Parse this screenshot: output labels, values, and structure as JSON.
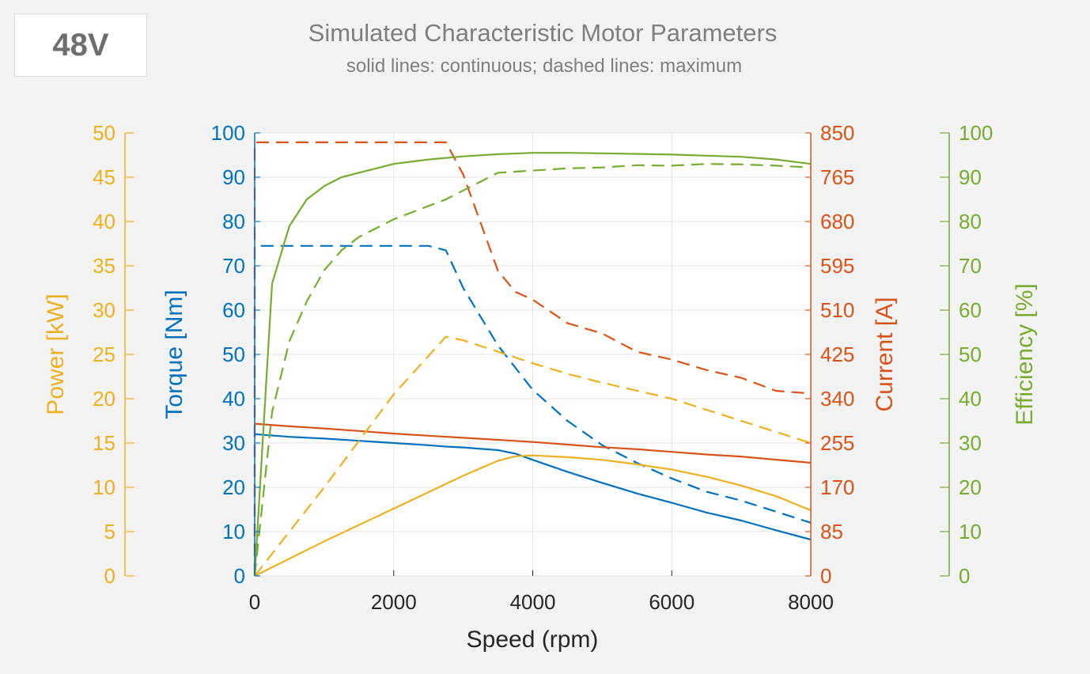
{
  "badge": "48V",
  "chart_data": {
    "type": "line",
    "title": "Simulated Characteristic Motor Parameters",
    "subtitle": "solid lines: continuous; dashed lines: maximum",
    "xlabel": "Speed (rpm)",
    "xlim": [
      0,
      8000
    ],
    "xticks": [
      0,
      2000,
      4000,
      6000,
      8000
    ],
    "grid": true,
    "axes": [
      {
        "id": "power",
        "label": "Power [kW]",
        "side": "left-outer",
        "color": "#EDB120",
        "lim": [
          0,
          50
        ],
        "ticks": [
          0,
          5,
          10,
          15,
          20,
          25,
          30,
          35,
          40,
          45,
          50
        ]
      },
      {
        "id": "torque",
        "label": "Torque [Nm]",
        "side": "left",
        "color": "#0072BD",
        "lim": [
          0,
          100
        ],
        "ticks": [
          0,
          10,
          20,
          30,
          40,
          50,
          60,
          70,
          80,
          90,
          100
        ]
      },
      {
        "id": "current",
        "label": "Current [A]",
        "side": "right",
        "color": "#D95319",
        "lim": [
          0,
          850
        ],
        "ticks": [
          0,
          85,
          170,
          255,
          340,
          425,
          510,
          595,
          680,
          765,
          850
        ]
      },
      {
        "id": "efficiency",
        "label": "Efficiency [%]",
        "side": "right-outer",
        "color": "#77AC30",
        "lim": [
          0,
          100
        ],
        "ticks": [
          0,
          10,
          20,
          30,
          40,
          50,
          60,
          70,
          80,
          90,
          100
        ]
      }
    ],
    "series": [
      {
        "axis": "torque",
        "style": "solid",
        "color": "#0072BD",
        "x": [
          0,
          500,
          1000,
          1500,
          2000,
          2500,
          2750,
          3000,
          3500,
          3750,
          4000,
          4500,
          5000,
          5500,
          6000,
          6500,
          7000,
          7500,
          8000
        ],
        "y": [
          32,
          31.4,
          31,
          30.5,
          30,
          29.5,
          29.2,
          29,
          28.4,
          27.6,
          26.2,
          23.5,
          21,
          18.6,
          16.5,
          14.3,
          12.5,
          10.3,
          8.2
        ]
      },
      {
        "axis": "torque",
        "style": "dashed",
        "color": "#0072BD",
        "x": [
          0,
          0,
          2500,
          2750,
          3000,
          3500,
          4000,
          4500,
          5000,
          5500,
          6000,
          6500,
          7000,
          7500,
          8000
        ],
        "y": [
          0,
          74.5,
          74.5,
          73.5,
          65,
          52,
          42,
          35,
          29.5,
          25.5,
          22,
          19,
          17,
          14.5,
          12
        ]
      },
      {
        "axis": "current",
        "style": "solid",
        "color": "#D95319",
        "x": [
          0,
          500,
          1000,
          1500,
          2000,
          2500,
          3000,
          3500,
          4000,
          4500,
          5000,
          5500,
          6000,
          6500,
          7000,
          7500,
          8000
        ],
        "y": [
          292,
          287,
          283,
          278,
          273,
          269,
          265,
          261,
          257,
          252,
          247,
          243,
          238,
          233,
          229,
          223,
          217
        ]
      },
      {
        "axis": "current",
        "style": "dashed",
        "color": "#D95319",
        "x": [
          0,
          0,
          2750,
          3000,
          3500,
          3750,
          4000,
          4500,
          5000,
          5500,
          6000,
          6500,
          7000,
          7500,
          8000
        ],
        "y": [
          0,
          832,
          832,
          770,
          585,
          545,
          530,
          485,
          465,
          430,
          415,
          395,
          380,
          355,
          350
        ]
      },
      {
        "axis": "power",
        "style": "solid",
        "color": "#EDB120",
        "x": [
          0,
          1000,
          2000,
          3000,
          3500,
          3750,
          4000,
          4500,
          5000,
          5500,
          6000,
          6500,
          7000,
          7500,
          8000
        ],
        "y": [
          0,
          3.9,
          7.6,
          11.3,
          13,
          13.5,
          13.6,
          13.4,
          13.1,
          12.6,
          12,
          11.2,
          10.2,
          9,
          7.4
        ]
      },
      {
        "axis": "power",
        "style": "dashed",
        "color": "#EDB120",
        "x": [
          0,
          1000,
          2000,
          2750,
          3000,
          3500,
          4000,
          4500,
          5000,
          6000,
          7000,
          8000
        ],
        "y": [
          0,
          10,
          20.5,
          27,
          26.6,
          25.3,
          24,
          22.8,
          21.8,
          20,
          17.5,
          15
        ]
      },
      {
        "axis": "efficiency",
        "style": "solid",
        "color": "#77AC30",
        "x": [
          0,
          250,
          500,
          750,
          1000,
          1250,
          1500,
          2000,
          2500,
          3000,
          3500,
          4000,
          4500,
          5000,
          6000,
          7000,
          7500,
          8000
        ],
        "y": [
          0,
          66,
          79,
          85,
          88,
          90,
          91,
          93,
          94,
          94.7,
          95.2,
          95.5,
          95.5,
          95.4,
          95.1,
          94.6,
          94,
          93
        ]
      },
      {
        "axis": "efficiency",
        "style": "dashed",
        "color": "#77AC30",
        "x": [
          0,
          250,
          500,
          750,
          1000,
          1250,
          1500,
          2000,
          2500,
          2750,
          3000,
          3250,
          3500,
          4000,
          4500,
          5000,
          5500,
          6000,
          6500,
          7000,
          7500,
          8000
        ],
        "y": [
          0,
          37,
          53,
          62,
          69,
          73.5,
          76.5,
          80.5,
          83.5,
          85,
          87,
          89,
          91,
          91.5,
          92,
          92.2,
          92.7,
          92.6,
          93,
          92.9,
          92.6,
          92.2
        ]
      }
    ]
  }
}
